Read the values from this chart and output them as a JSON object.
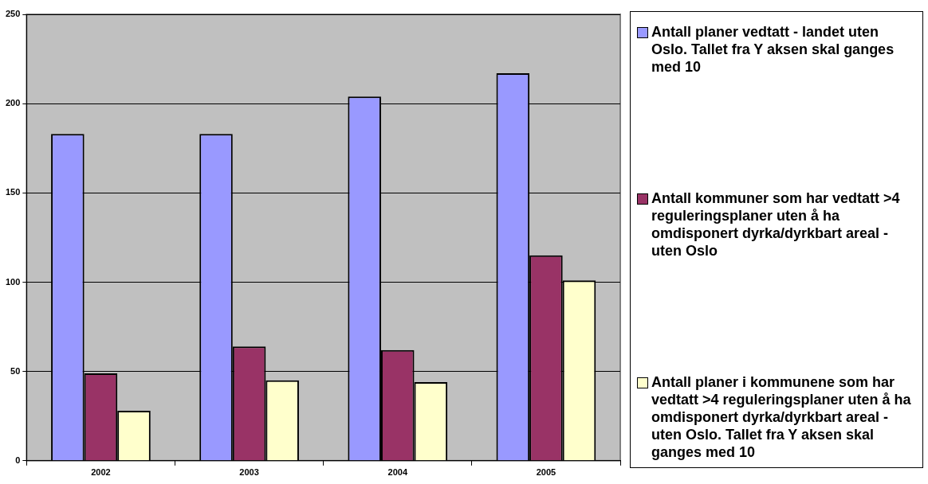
{
  "chart_data": {
    "type": "bar",
    "categories": [
      "2002",
      "2003",
      "2004",
      "2005"
    ],
    "series": [
      {
        "name": "Antall planer vedtatt - landet uten Oslo. Tallet fra Y aksen skal ganges med 10",
        "color": "#9999ff",
        "values": [
          183,
          183,
          204,
          217
        ]
      },
      {
        "name": "Antall kommuner som har vedtatt >4 reguleringsplaner uten å ha omdisponert dyrka/dyrkbart areal - uten Oslo",
        "color": "#993366",
        "values": [
          49,
          64,
          62,
          115
        ]
      },
      {
        "name": "Antall planer i kommunene som har vedtatt >4 reguleringsplaner uten å ha omdisponert dyrka/dyrkbart areal - uten Oslo. Tallet fra Y aksen skal ganges med 10",
        "color": "#ffffcc",
        "values": [
          28,
          45,
          44,
          101
        ]
      }
    ],
    "ylim": [
      0,
      250
    ],
    "yticks": [
      0,
      50,
      100,
      150,
      200,
      250
    ],
    "grid": "y",
    "legend": "right"
  }
}
